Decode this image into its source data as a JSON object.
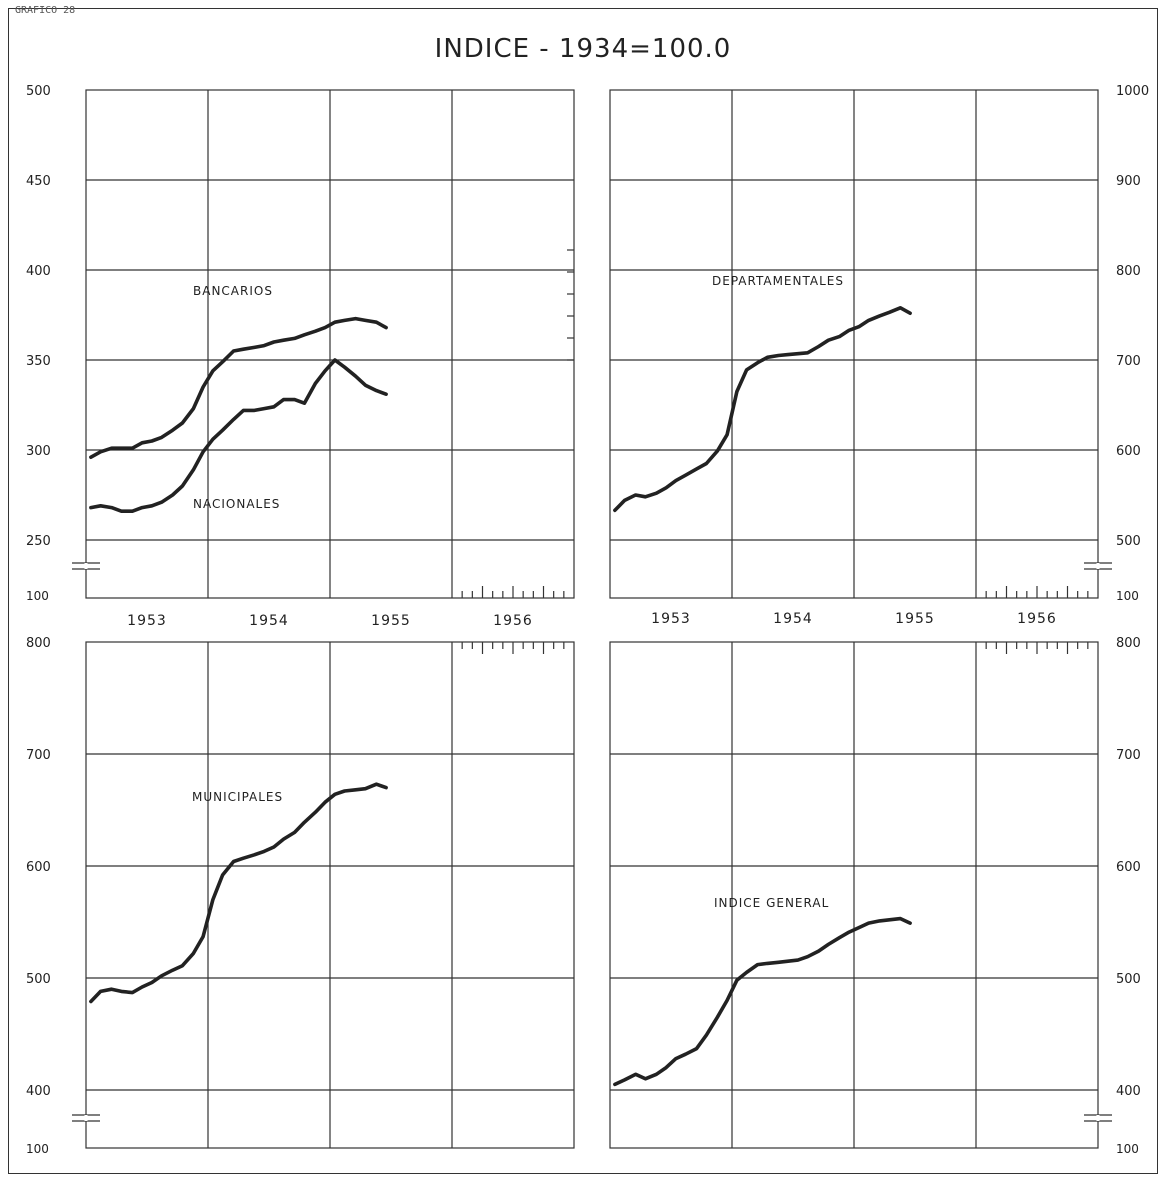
{
  "header": {
    "corner_label": "GRAFICO 28",
    "title": "INDICE - 1934=100.0"
  },
  "chart_data": [
    {
      "id": "bancarios-nacionales",
      "type": "line",
      "title": "",
      "xlabel": "",
      "ylabel": "",
      "axis_side": "left",
      "x_ticks": [
        "1953",
        "1954",
        "1955",
        "1956"
      ],
      "y_ticks": [
        "250",
        "300",
        "350",
        "400",
        "450",
        "500"
      ],
      "y_break_label": "100",
      "ylim": [
        250,
        500
      ],
      "xlim": [
        1953.0,
        1957.0
      ],
      "grid": true,
      "series": [
        {
          "name": "BANCARIOS",
          "points": [
            [
              1953.04,
              296
            ],
            [
              1953.12,
              299
            ],
            [
              1953.21,
              301
            ],
            [
              1953.29,
              301
            ],
            [
              1953.38,
              301
            ],
            [
              1953.46,
              304
            ],
            [
              1953.54,
              305
            ],
            [
              1953.62,
              307
            ],
            [
              1953.71,
              311
            ],
            [
              1953.79,
              315
            ],
            [
              1953.88,
              323
            ],
            [
              1953.96,
              335
            ],
            [
              1954.04,
              344
            ],
            [
              1954.12,
              349
            ],
            [
              1954.21,
              355
            ],
            [
              1954.29,
              356
            ],
            [
              1954.38,
              357
            ],
            [
              1954.46,
              358
            ],
            [
              1954.54,
              360
            ],
            [
              1954.62,
              361
            ],
            [
              1954.71,
              362
            ],
            [
              1954.79,
              364
            ],
            [
              1954.88,
              366
            ],
            [
              1954.96,
              368
            ],
            [
              1955.04,
              371
            ],
            [
              1955.12,
              372
            ],
            [
              1955.21,
              373
            ],
            [
              1955.29,
              372
            ],
            [
              1955.38,
              371
            ],
            [
              1955.46,
              368
            ]
          ]
        },
        {
          "name": "NACIONALES",
          "points": [
            [
              1953.04,
              268
            ],
            [
              1953.12,
              269
            ],
            [
              1953.21,
              268
            ],
            [
              1953.29,
              266
            ],
            [
              1953.38,
              266
            ],
            [
              1953.46,
              268
            ],
            [
              1953.54,
              269
            ],
            [
              1953.62,
              271
            ],
            [
              1953.71,
              275
            ],
            [
              1953.79,
              280
            ],
            [
              1953.88,
              289
            ],
            [
              1953.96,
              299
            ],
            [
              1954.04,
              306
            ],
            [
              1954.12,
              311
            ],
            [
              1954.21,
              317
            ],
            [
              1954.29,
              322
            ],
            [
              1954.38,
              322
            ],
            [
              1954.46,
              323
            ],
            [
              1954.54,
              324
            ],
            [
              1954.62,
              328
            ],
            [
              1954.71,
              328
            ],
            [
              1954.79,
              326
            ],
            [
              1954.88,
              337
            ],
            [
              1954.96,
              344
            ],
            [
              1955.04,
              350
            ],
            [
              1955.12,
              346
            ],
            [
              1955.21,
              341
            ],
            [
              1955.29,
              336
            ],
            [
              1955.38,
              333
            ],
            [
              1955.46,
              331
            ]
          ]
        }
      ]
    },
    {
      "id": "departamentales",
      "type": "line",
      "title": "",
      "xlabel": "",
      "ylabel": "",
      "axis_side": "right",
      "x_ticks": [
        "1953",
        "1954",
        "1955",
        "1956"
      ],
      "y_ticks": [
        "500",
        "600",
        "700",
        "800",
        "900",
        "1000"
      ],
      "y_break_label": "100",
      "ylim": [
        500,
        1000
      ],
      "xlim": [
        1953.0,
        1957.0
      ],
      "grid": true,
      "series": [
        {
          "name": "DEPARTAMENTALES",
          "points": [
            [
              1953.04,
              533
            ],
            [
              1953.12,
              544
            ],
            [
              1953.21,
              550
            ],
            [
              1953.29,
              548
            ],
            [
              1953.38,
              552
            ],
            [
              1953.46,
              558
            ],
            [
              1953.54,
              566
            ],
            [
              1953.62,
              572
            ],
            [
              1953.71,
              579
            ],
            [
              1953.79,
              585
            ],
            [
              1953.88,
              599
            ],
            [
              1953.96,
              617
            ],
            [
              1954.04,
              665
            ],
            [
              1954.12,
              689
            ],
            [
              1954.21,
              697
            ],
            [
              1954.29,
              703
            ],
            [
              1954.38,
              705
            ],
            [
              1954.46,
              706
            ],
            [
              1954.54,
              707
            ],
            [
              1954.62,
              708
            ],
            [
              1954.71,
              715
            ],
            [
              1954.79,
              722
            ],
            [
              1954.88,
              726
            ],
            [
              1954.96,
              733
            ],
            [
              1955.04,
              737
            ],
            [
              1955.12,
              744
            ],
            [
              1955.21,
              749
            ],
            [
              1955.29,
              753
            ],
            [
              1955.38,
              758
            ],
            [
              1955.46,
              752
            ]
          ]
        }
      ]
    },
    {
      "id": "municipales",
      "type": "line",
      "title": "",
      "xlabel": "",
      "ylabel": "",
      "axis_side": "left",
      "x_ticks": [],
      "y_ticks": [
        "400",
        "500",
        "600",
        "700",
        "800"
      ],
      "y_break_label": "100",
      "ylim": [
        400,
        800
      ],
      "xlim": [
        1953.0,
        1957.0
      ],
      "grid": true,
      "series": [
        {
          "name": "MUNICIPALES",
          "points": [
            [
              1953.04,
              479
            ],
            [
              1953.12,
              488
            ],
            [
              1953.21,
              490
            ],
            [
              1953.29,
              488
            ],
            [
              1953.38,
              487
            ],
            [
              1953.46,
              492
            ],
            [
              1953.54,
              496
            ],
            [
              1953.62,
              502
            ],
            [
              1953.71,
              507
            ],
            [
              1953.79,
              511
            ],
            [
              1953.88,
              522
            ],
            [
              1953.96,
              537
            ],
            [
              1954.04,
              570
            ],
            [
              1954.12,
              592
            ],
            [
              1954.21,
              604
            ],
            [
              1954.29,
              607
            ],
            [
              1954.38,
              610
            ],
            [
              1954.46,
              613
            ],
            [
              1954.54,
              617
            ],
            [
              1954.62,
              624
            ],
            [
              1954.71,
              630
            ],
            [
              1954.79,
              639
            ],
            [
              1954.88,
              648
            ],
            [
              1954.96,
              657
            ],
            [
              1955.04,
              664
            ],
            [
              1955.12,
              667
            ],
            [
              1955.21,
              668
            ],
            [
              1955.29,
              669
            ],
            [
              1955.38,
              673
            ],
            [
              1955.46,
              670
            ]
          ]
        }
      ]
    },
    {
      "id": "indice-general",
      "type": "line",
      "title": "",
      "xlabel": "",
      "ylabel": "",
      "axis_side": "right",
      "x_ticks": [],
      "y_ticks": [
        "400",
        "500",
        "600",
        "700",
        "800"
      ],
      "y_break_label": "100",
      "ylim": [
        400,
        800
      ],
      "xlim": [
        1953.0,
        1957.0
      ],
      "grid": true,
      "series": [
        {
          "name": "INDICE GENERAL",
          "points": [
            [
              1953.04,
              405
            ],
            [
              1953.12,
              409
            ],
            [
              1953.21,
              414
            ],
            [
              1953.29,
              410
            ],
            [
              1953.38,
              414
            ],
            [
              1953.46,
              420
            ],
            [
              1953.54,
              428
            ],
            [
              1953.62,
              432
            ],
            [
              1953.71,
              437
            ],
            [
              1953.79,
              449
            ],
            [
              1953.88,
              465
            ],
            [
              1953.96,
              480
            ],
            [
              1954.04,
              498
            ],
            [
              1954.12,
              505
            ],
            [
              1954.21,
              512
            ],
            [
              1954.29,
              513
            ],
            [
              1954.38,
              514
            ],
            [
              1954.46,
              515
            ],
            [
              1954.54,
              516
            ],
            [
              1954.62,
              519
            ],
            [
              1954.71,
              524
            ],
            [
              1954.79,
              530
            ],
            [
              1954.88,
              536
            ],
            [
              1954.96,
              541
            ],
            [
              1955.04,
              545
            ],
            [
              1955.12,
              549
            ],
            [
              1955.21,
              551
            ],
            [
              1955.29,
              552
            ],
            [
              1955.38,
              553
            ],
            [
              1955.46,
              549
            ]
          ]
        }
      ]
    }
  ]
}
